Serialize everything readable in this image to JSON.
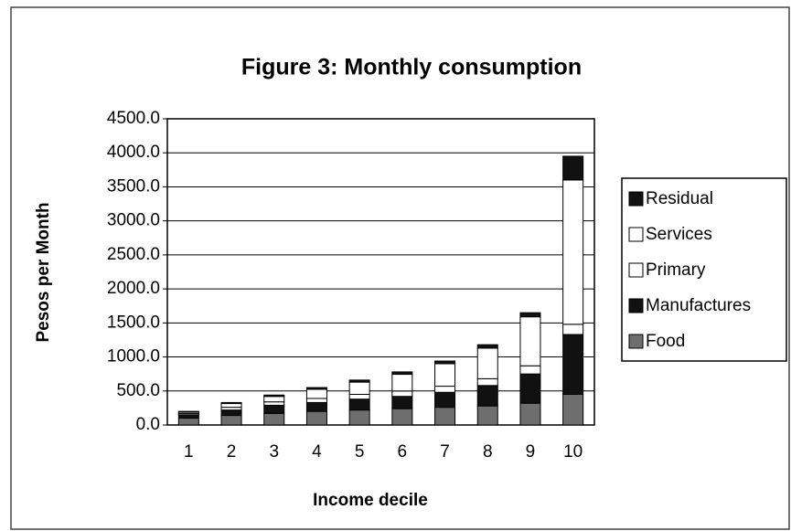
{
  "chart_data": {
    "type": "stacked_bar",
    "title": "Figure 3: Monthly consumption",
    "x_label": "Income decile",
    "y_label": "Pesos per Month",
    "categories": [
      "1",
      "2",
      "3",
      "4",
      "5",
      "6",
      "7",
      "8",
      "9",
      "10"
    ],
    "series": [
      {
        "name": "Food",
        "color": "#6e6e6e",
        "values": [
          100,
          140,
          170,
          200,
          220,
          240,
          260,
          280,
          320,
          450
        ]
      },
      {
        "name": "Manufactures",
        "color": "#111111",
        "values": [
          50,
          80,
          120,
          130,
          160,
          180,
          220,
          300,
          430,
          880
        ]
      },
      {
        "name": "Primary",
        "color": "#ffffff",
        "values": [
          20,
          40,
          50,
          60,
          70,
          80,
          90,
          100,
          120,
          150
        ]
      },
      {
        "name": "Services",
        "color": "#ffffff",
        "values": [
          20,
          55,
          80,
          135,
          180,
          245,
          330,
          450,
          720,
          2120
        ]
      },
      {
        "name": "Residual",
        "color": "#111111",
        "values": [
          10,
          15,
          20,
          25,
          30,
          35,
          40,
          50,
          60,
          350
        ]
      }
    ],
    "ylim": [
      0,
      4500
    ],
    "yticks": [
      {
        "value": 0,
        "label": "0.0"
      },
      {
        "value": 500,
        "label": "500.0"
      },
      {
        "value": 1000,
        "label": "1000.0"
      },
      {
        "value": 1500,
        "label": "1500.0"
      },
      {
        "value": 2000,
        "label": "2000.0"
      },
      {
        "value": 2500,
        "label": "2500.0"
      },
      {
        "value": 3000,
        "label": "3000.0"
      },
      {
        "value": 3500,
        "label": "3500.0"
      },
      {
        "value": 4000,
        "label": "4000.0"
      },
      {
        "value": 4500,
        "label": "4500.0"
      }
    ],
    "grid": true,
    "legend": "right"
  }
}
